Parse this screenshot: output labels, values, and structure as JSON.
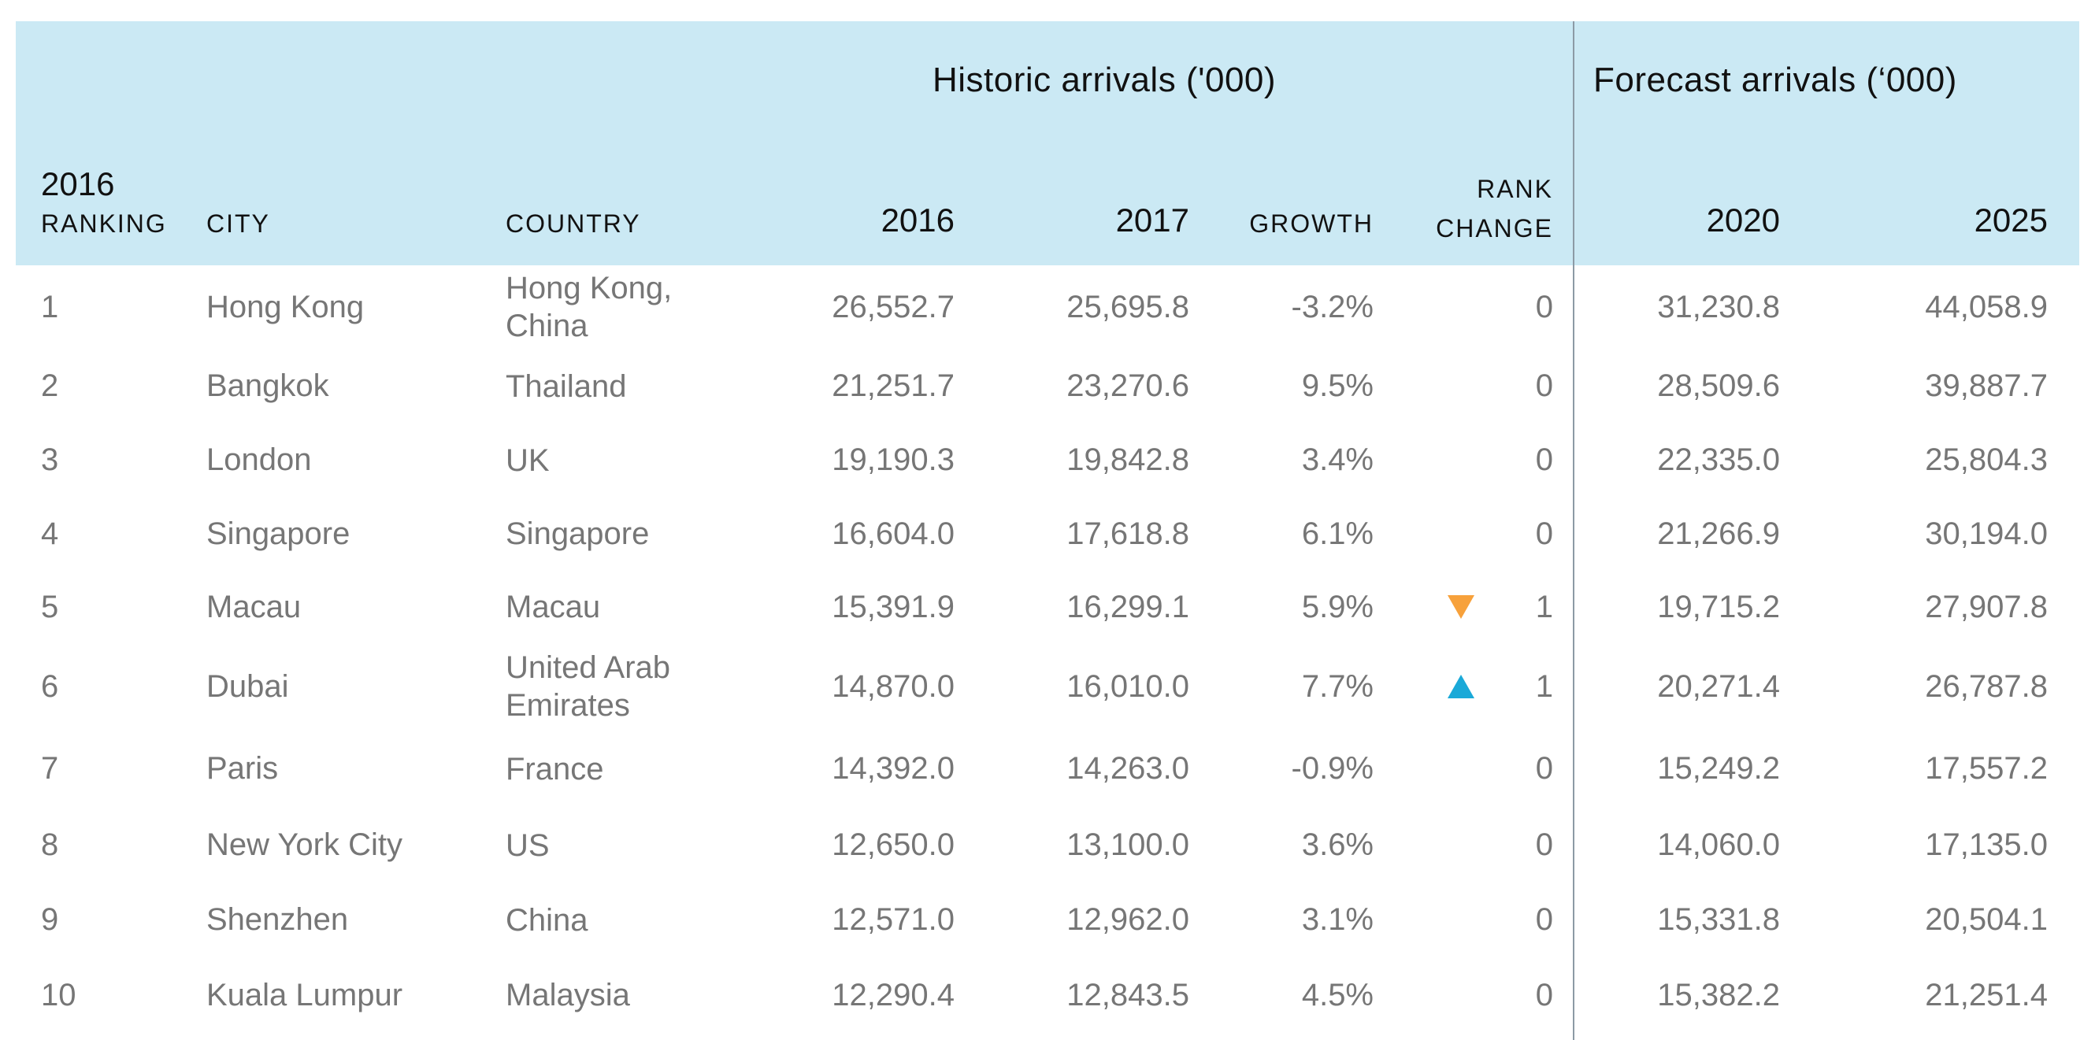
{
  "header": {
    "historic_title": "Historic arrivals ('000)",
    "forecast_title": "Forecast arrivals (‘000)",
    "col_ranking_year": "2016",
    "col_ranking_label": "RANKING",
    "col_city": "CITY",
    "col_country": "COUNTRY",
    "col_2016": "2016",
    "col_2017": "2017",
    "col_growth": "GROWTH",
    "col_rank_change_1": "RANK",
    "col_rank_change_2": "CHANGE",
    "col_2020": "2020",
    "col_2025": "2025"
  },
  "colors": {
    "header_bg": "#cbe9f4",
    "rank_down": "#f7a13b",
    "rank_up": "#1aa9d8"
  },
  "rows": [
    {
      "rank": "1",
      "city": "Hong Kong",
      "country": "Hong Kong, China",
      "y2016": "26,552.7",
      "y2017": "25,695.8",
      "growth": "-3.2%",
      "rank_change": "0",
      "rank_icon": "",
      "y2020": "31,230.8",
      "y2025": "44,058.9"
    },
    {
      "rank": "2",
      "city": "Bangkok",
      "country": "Thailand",
      "y2016": "21,251.7",
      "y2017": "23,270.6",
      "growth": "9.5%",
      "rank_change": "0",
      "rank_icon": "",
      "y2020": "28,509.6",
      "y2025": "39,887.7"
    },
    {
      "rank": "3",
      "city": "London",
      "country": "UK",
      "y2016": "19,190.3",
      "y2017": "19,842.8",
      "growth": "3.4%",
      "rank_change": "0",
      "rank_icon": "",
      "y2020": "22,335.0",
      "y2025": "25,804.3"
    },
    {
      "rank": "4",
      "city": "Singapore",
      "country": "Singapore",
      "y2016": "16,604.0",
      "y2017": "17,618.8",
      "growth": "6.1%",
      "rank_change": "0",
      "rank_icon": "",
      "y2020": "21,266.9",
      "y2025": "30,194.0"
    },
    {
      "rank": "5",
      "city": "Macau",
      "country": "Macau",
      "y2016": "15,391.9",
      "y2017": "16,299.1",
      "growth": "5.9%",
      "rank_change": "1",
      "rank_icon": "down-triangle-icon",
      "y2020": "19,715.2",
      "y2025": "27,907.8"
    },
    {
      "rank": "6",
      "city": "Dubai",
      "country": "United Arab Emirates",
      "y2016": "14,870.0",
      "y2017": "16,010.0",
      "growth": "7.7%",
      "rank_change": "1",
      "rank_icon": "up-triangle-icon",
      "y2020": "20,271.4",
      "y2025": "26,787.8"
    },
    {
      "rank": "7",
      "city": "Paris",
      "country": "France",
      "y2016": "14,392.0",
      "y2017": "14,263.0",
      "growth": "-0.9%",
      "rank_change": "0",
      "rank_icon": "",
      "y2020": "15,249.2",
      "y2025": "17,557.2"
    },
    {
      "rank": "8",
      "city": "New York City",
      "country": "US",
      "y2016": "12,650.0",
      "y2017": "13,100.0",
      "growth": "3.6%",
      "rank_change": "0",
      "rank_icon": "",
      "y2020": "14,060.0",
      "y2025": "17,135.0"
    },
    {
      "rank": "9",
      "city": "Shenzhen",
      "country": "China",
      "y2016": "12,571.0",
      "y2017": "12,962.0",
      "growth": "3.1%",
      "rank_change": "0",
      "rank_icon": "",
      "y2020": "15,331.8",
      "y2025": "20,504.1"
    },
    {
      "rank": "10",
      "city": "Kuala Lumpur",
      "country": "Malaysia",
      "y2016": "12,290.4",
      "y2017": "12,843.5",
      "growth": "4.5%",
      "rank_change": "0",
      "rank_icon": "",
      "y2020": "15,382.2",
      "y2025": "21,251.4"
    }
  ]
}
